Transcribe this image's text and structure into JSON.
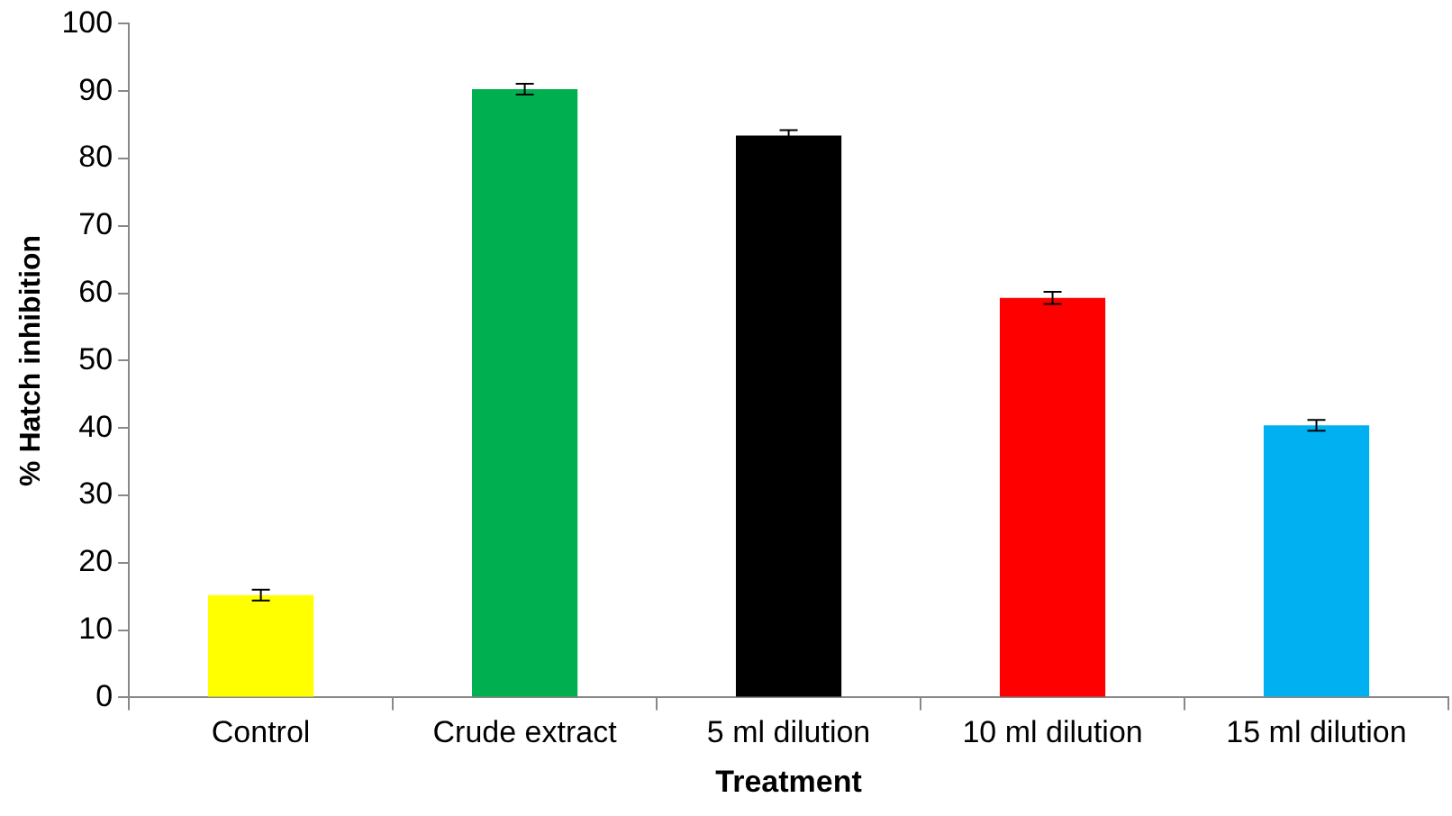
{
  "chart_data": {
    "type": "bar",
    "xlabel": "Treatment",
    "ylabel": "% Hatch inhibition",
    "categories": [
      "Control",
      "Crude extract",
      "5 ml dilution",
      "10 ml dilution",
      "15 ml dilution"
    ],
    "values": [
      15.2,
      90.3,
      83.4,
      59.3,
      40.4
    ],
    "colors": [
      "#ffff00",
      "#00b050",
      "#000000",
      "#ff0000",
      "#00b0f0"
    ],
    "errors": [
      0.8,
      0.8,
      0.8,
      0.9,
      0.8
    ],
    "ylim": [
      0,
      100
    ],
    "yticks": [
      0,
      10,
      20,
      30,
      40,
      50,
      60,
      70,
      80,
      90,
      100
    ],
    "grid": false,
    "legend": false
  }
}
